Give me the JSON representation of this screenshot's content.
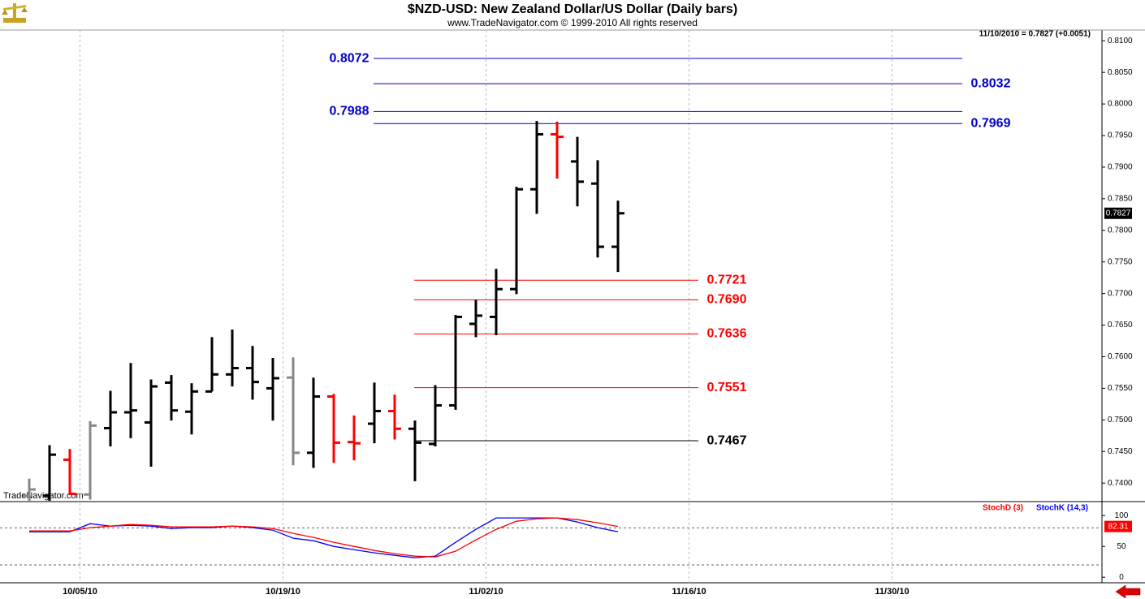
{
  "chart_data": [
    {
      "type": "ohlc",
      "title": "$NZD-USD:  New Zealand Dollar/US Dollar  (Daily bars)",
      "subtitle": "www.TradeNavigator.com © 1999-2010 All rights reserved",
      "quote": "11/10/2010 = 0.7827 (+0.0051)",
      "watermark": "TradeNavigator.com",
      "x": [
        "09/30/10",
        "10/01/10",
        "10/04/10",
        "10/05/10",
        "10/06/10",
        "10/07/10",
        "10/08/10",
        "10/11/10",
        "10/12/10",
        "10/13/10",
        "10/14/10",
        "10/15/10",
        "10/18/10",
        "10/19/10",
        "10/20/10",
        "10/21/10",
        "10/22/10",
        "10/25/10",
        "10/26/10",
        "10/27/10",
        "10/28/10",
        "10/29/10",
        "11/01/10",
        "11/02/10",
        "11/03/10",
        "11/04/10",
        "11/05/10",
        "11/08/10",
        "11/09/10",
        "11/10/10"
      ],
      "open": [
        0.738,
        0.738,
        0.7437,
        0.7382,
        0.7487,
        0.7512,
        0.7496,
        0.7559,
        0.7513,
        0.7545,
        0.7572,
        0.7582,
        0.755,
        0.7567,
        0.7448,
        0.7537,
        0.7465,
        0.7494,
        0.7514,
        0.7486,
        0.7462,
        0.7523,
        0.7652,
        0.7663,
        0.7707,
        0.7865,
        0.7952,
        0.7909,
        0.7874,
        0.7774
      ],
      "high": [
        0.7407,
        0.746,
        0.7454,
        0.7498,
        0.7546,
        0.759,
        0.7564,
        0.7571,
        0.7558,
        0.7631,
        0.7643,
        0.7617,
        0.7598,
        0.7599,
        0.7567,
        0.7541,
        0.7507,
        0.7559,
        0.754,
        0.7499,
        0.7555,
        0.7666,
        0.769,
        0.7739,
        0.7869,
        0.7973,
        0.7972,
        0.7948,
        0.7911,
        0.7847
      ],
      "low": [
        0.737,
        0.7372,
        0.7381,
        0.7374,
        0.7458,
        0.7471,
        0.7426,
        0.7499,
        0.7477,
        0.7545,
        0.7553,
        0.7532,
        0.7499,
        0.7428,
        0.7424,
        0.7432,
        0.7436,
        0.7463,
        0.7469,
        0.7403,
        0.7458,
        0.7516,
        0.7631,
        0.7634,
        0.7699,
        0.7826,
        0.7882,
        0.7838,
        0.7757,
        0.7734
      ],
      "close": [
        0.739,
        0.7445,
        0.7383,
        0.7491,
        0.7512,
        0.7515,
        0.7553,
        0.7515,
        0.7545,
        0.7572,
        0.7582,
        0.756,
        0.7566,
        0.7448,
        0.7537,
        0.7464,
        0.7463,
        0.7514,
        0.7486,
        0.7464,
        0.7523,
        0.7663,
        0.7665,
        0.7707,
        0.7865,
        0.7952,
        0.7948,
        0.7877,
        0.7774,
        0.7827
      ],
      "colors": [
        "#888888",
        "#000000",
        "#ff0000",
        "#888888",
        "#000000",
        "#000000",
        "#000000",
        "#000000",
        "#000000",
        "#000000",
        "#000000",
        "#000000",
        "#000000",
        "#888888",
        "#000000",
        "#ff0000",
        "#ff0000",
        "#000000",
        "#ff0000",
        "#000000",
        "#000000",
        "#000000",
        "#000000",
        "#000000",
        "#000000",
        "#000000",
        "#ff0000",
        "#000000",
        "#000000",
        "#000000"
      ],
      "ylim": [
        0.7372,
        0.8117
      ],
      "yticks": [
        {
          "value": 0.74,
          "label": "0.7400"
        },
        {
          "value": 0.745,
          "label": "0.7450"
        },
        {
          "value": 0.75,
          "label": "0.7500"
        },
        {
          "value": 0.755,
          "label": "0.7550"
        },
        {
          "value": 0.76,
          "label": "0.7600"
        },
        {
          "value": 0.765,
          "label": "0.7650"
        },
        {
          "value": 0.77,
          "label": "0.7700"
        },
        {
          "value": 0.775,
          "label": "0.7750"
        },
        {
          "value": 0.78,
          "label": "0.7800"
        },
        {
          "value": 0.785,
          "label": "0.7850"
        },
        {
          "value": 0.79,
          "label": "0.7900"
        },
        {
          "value": 0.795,
          "label": "0.7950"
        },
        {
          "value": 0.8,
          "label": "0.8000"
        },
        {
          "value": 0.805,
          "label": "0.8050"
        },
        {
          "value": 0.81,
          "label": "0.8100"
        }
      ],
      "xticks": [
        "10/05/10",
        "10/19/10",
        "11/02/10",
        "11/16/10",
        "11/30/10"
      ],
      "levels": {
        "values": [
          0.8072,
          0.8032,
          0.7988,
          0.7969,
          0.7721,
          0.769,
          0.7636,
          0.7551,
          0.7467
        ],
        "value_labels": [
          "0.8072",
          "0.8032",
          "0.7988",
          "0.7969",
          "0.7721",
          "0.7690",
          "0.7636",
          "0.7551",
          "0.7467"
        ],
        "colors": [
          "#0000cc",
          "#0000cc",
          "#0000cc",
          "#0000cc",
          "#ff0000",
          "#ff0000",
          "#ff0000",
          "#ff0000",
          "#000000"
        ]
      }
    },
    {
      "type": "line",
      "series": [
        {
          "name": "StochD (3)",
          "color": "#ff0000",
          "values": [
            75.0,
            75.0,
            75.0,
            80.3,
            82.9,
            85.5,
            84.2,
            81.6,
            81.6,
            81.6,
            82.9,
            81.6,
            78.9,
            71.1,
            64.5,
            56.6,
            50.0,
            43.4,
            38.2,
            34.2,
            32.9,
            42.1,
            60.5,
            77.6,
            90.8,
            94.7,
            96.1,
            93.4,
            88.2,
            82.31
          ]
        },
        {
          "name": "StochK (14,3)",
          "color": "#0000ff",
          "values": [
            73.7,
            73.7,
            73.7,
            86.8,
            82.9,
            84.2,
            82.9,
            78.9,
            80.3,
            80.3,
            82.9,
            80.3,
            76.3,
            63.2,
            59.2,
            50.0,
            44.7,
            39.5,
            35.5,
            31.6,
            34.2,
            56.6,
            77.6,
            96.1,
            96.1,
            96.1,
            96.1,
            89.5,
            80.3,
            73.7
          ]
        }
      ],
      "ylim": [
        -9,
        120
      ],
      "yticks": [
        0,
        50,
        100
      ],
      "levels": [
        20,
        80
      ]
    }
  ]
}
